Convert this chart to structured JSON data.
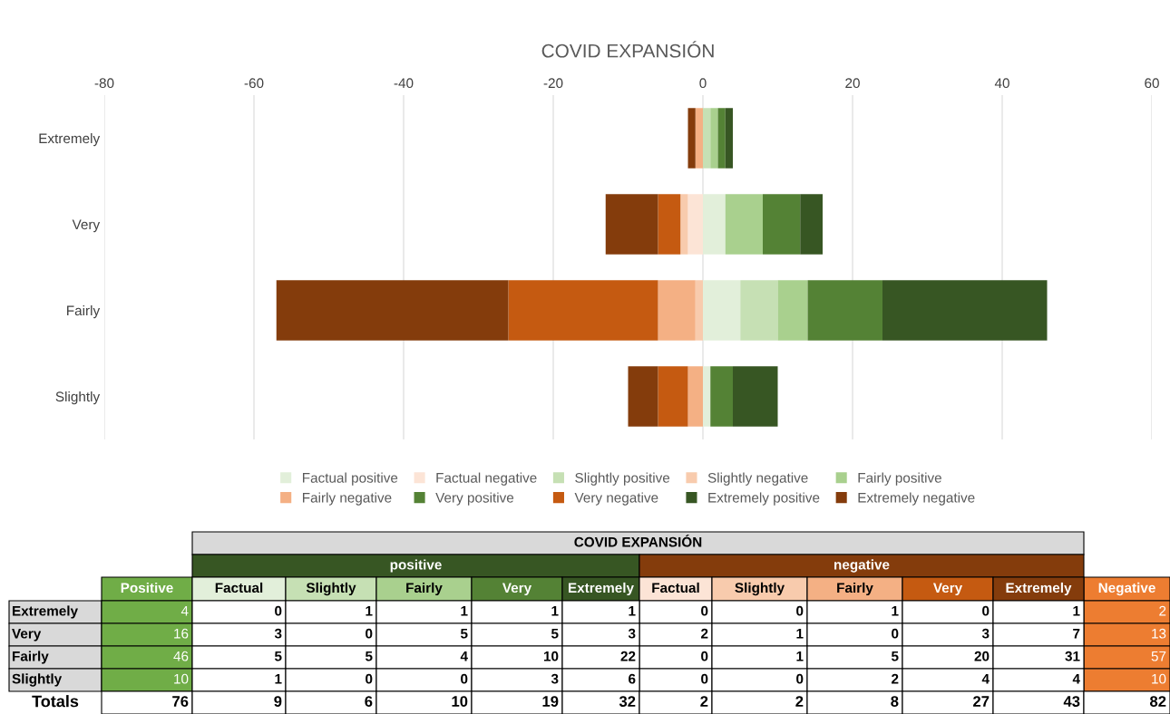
{
  "chart_data": {
    "type": "bar",
    "orientation": "horizontal",
    "stacked": true,
    "title": "COVID EXPANSIÓN",
    "categories": [
      "Extremely",
      "Very",
      "Fairly",
      "Slightly"
    ],
    "series": [
      {
        "name": "Factual positive",
        "color": "#e2efda",
        "values": [
          0,
          3,
          5,
          1
        ]
      },
      {
        "name": "Factual negative",
        "color": "#fce4d6",
        "values": [
          0,
          -2,
          0,
          0
        ]
      },
      {
        "name": "Slightly positive",
        "color": "#c6e0b4",
        "values": [
          1,
          0,
          5,
          0
        ]
      },
      {
        "name": "Slightly negative",
        "color": "#f8cbad",
        "values": [
          0,
          -1,
          -1,
          0
        ]
      },
      {
        "name": "Fairly positive",
        "color": "#a9d08e",
        "values": [
          1,
          5,
          4,
          0
        ]
      },
      {
        "name": "Fairly negative",
        "color": "#f4b084",
        "values": [
          -1,
          0,
          -5,
          -2
        ]
      },
      {
        "name": "Very positive",
        "color": "#548235",
        "values": [
          1,
          5,
          10,
          3
        ]
      },
      {
        "name": "Very negative",
        "color": "#c55a11",
        "values": [
          0,
          -3,
          -20,
          -4
        ]
      },
      {
        "name": "Extremely positive",
        "color": "#375623",
        "values": [
          1,
          3,
          22,
          6
        ]
      },
      {
        "name": "Extremely negative",
        "color": "#843c0c",
        "values": [
          -1,
          -7,
          -31,
          -4
        ]
      }
    ],
    "xlim": [
      -80,
      60
    ],
    "xticks": [
      -80,
      -60,
      -40,
      -20,
      0,
      20,
      40,
      60
    ],
    "grid": "x",
    "legend": "bottom",
    "annotations": [
      "COVID EXPANSIÓN",
      "positive",
      "negative",
      "Positive",
      "Factual",
      "Slightly",
      "Fairly",
      "Very",
      "Extremely",
      "Factual",
      "Slightly",
      "Fairly",
      "Very",
      "Extremely",
      "Negative",
      "Totals",
      "76",
      "9",
      "6",
      "10",
      "19",
      "32",
      "2",
      "2",
      "8",
      "27",
      "43",
      "82",
      "4",
      "0",
      "1",
      "1",
      "1",
      "1",
      "0",
      "0",
      "1",
      "0",
      "1",
      "2",
      "16",
      "3",
      "0",
      "5",
      "5",
      "3",
      "2",
      "1",
      "0",
      "3",
      "7",
      "13",
      "46",
      "5",
      "5",
      "4",
      "10",
      "22",
      "0",
      "1",
      "5",
      "20",
      "31",
      "57",
      "10",
      "1",
      "0",
      "0",
      "3",
      "6",
      "0",
      "0",
      "2",
      "4",
      "4",
      "10"
    ]
  }
}
